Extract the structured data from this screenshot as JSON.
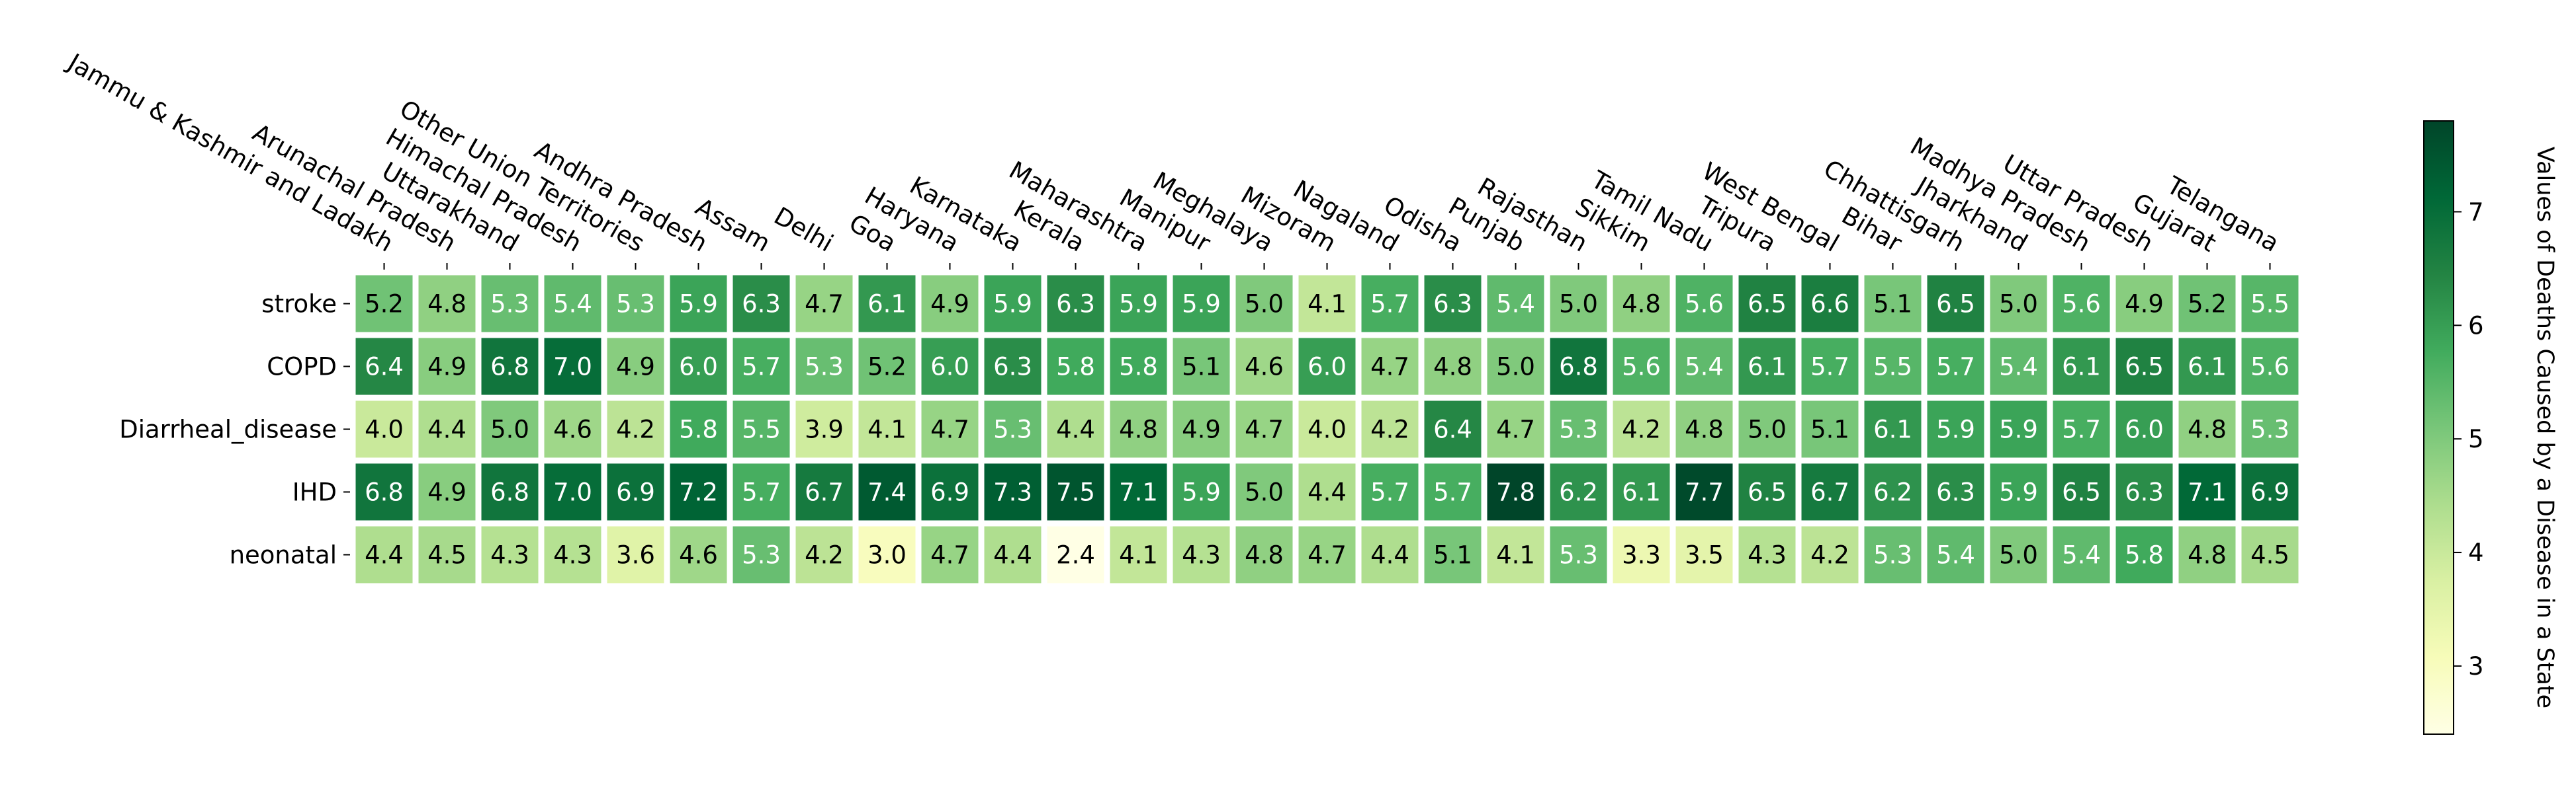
{
  "chart_data": {
    "type": "heatmap",
    "title": "",
    "xlabel": "",
    "ylabel": "",
    "x_tick_position": "top",
    "x_categories": [
      "Jammu & Kashmir and Ladakh",
      "Arunachal Pradesh",
      "Uttarakhand",
      "Himachal Pradesh",
      "Other Union Territories",
      "Andhra Pradesh",
      "Assam",
      "Delhi",
      "Goa",
      "Haryana",
      "Karnataka",
      "Kerala",
      "Maharashtra",
      "Manipur",
      "Meghalaya",
      "Mizoram",
      "Nagaland",
      "Odisha",
      "Punjab",
      "Rajasthan",
      "Sikkim",
      "Tamil Nadu",
      "Tripura",
      "West Bengal",
      "Bihar",
      "Chhattisgarh",
      "Jharkhand",
      "Madhya Pradesh",
      "Uttar Pradesh",
      "Gujarat",
      "Telangana"
    ],
    "y_categories": [
      "stroke",
      "COPD",
      "Diarrheal_disease",
      "IHD",
      "neonatal"
    ],
    "values": [
      [
        5.2,
        4.8,
        5.3,
        5.4,
        5.3,
        5.9,
        6.3,
        4.7,
        6.1,
        4.9,
        5.9,
        6.3,
        5.9,
        5.9,
        5.0,
        4.1,
        5.7,
        6.3,
        5.4,
        5.0,
        4.8,
        5.6,
        6.5,
        6.6,
        5.1,
        6.5,
        5.0,
        5.6,
        4.9,
        5.2,
        5.5
      ],
      [
        6.4,
        4.9,
        6.8,
        7.0,
        4.9,
        6.0,
        5.7,
        5.3,
        5.2,
        6.0,
        6.3,
        5.8,
        5.8,
        5.1,
        4.6,
        6.0,
        4.7,
        4.8,
        5.0,
        6.8,
        5.6,
        5.4,
        6.1,
        5.7,
        5.5,
        5.7,
        5.4,
        6.1,
        6.5,
        6.1,
        5.6
      ],
      [
        4.0,
        4.4,
        5.0,
        4.6,
        4.2,
        5.8,
        5.5,
        3.9,
        4.1,
        4.7,
        5.3,
        4.4,
        4.8,
        4.9,
        4.7,
        4.0,
        4.2,
        6.4,
        4.7,
        5.3,
        4.2,
        4.8,
        5.0,
        5.1,
        6.1,
        5.9,
        5.9,
        5.7,
        6.0,
        4.8,
        5.3
      ],
      [
        6.8,
        4.9,
        6.8,
        7.0,
        6.9,
        7.2,
        5.7,
        6.7,
        7.4,
        6.9,
        7.3,
        7.5,
        7.1,
        5.9,
        5.0,
        4.4,
        5.7,
        5.7,
        7.8,
        6.2,
        6.1,
        7.7,
        6.5,
        6.7,
        6.2,
        6.3,
        5.9,
        6.5,
        6.3,
        7.1,
        6.9
      ],
      [
        4.4,
        4.5,
        4.3,
        4.3,
        3.6,
        4.6,
        5.3,
        4.2,
        3.0,
        4.7,
        4.4,
        2.4,
        4.1,
        4.3,
        4.8,
        4.7,
        4.4,
        5.1,
        4.1,
        5.3,
        3.3,
        3.5,
        4.3,
        4.2,
        5.3,
        5.4,
        5.0,
        5.4,
        5.8,
        4.8,
        4.5
      ]
    ],
    "value_format": "one decimal",
    "colormap": "YlGn",
    "colormap_stops": [
      "#ffffe5",
      "#f7fcb9",
      "#d9f0a3",
      "#addd8e",
      "#78c679",
      "#41ab5d",
      "#238443",
      "#006837",
      "#004529"
    ],
    "vmin": 2.4,
    "vmax": 7.8,
    "cell_border_color": "#ffffff",
    "colorbar": {
      "label": "Values of Deaths Caused by a Disease in a State",
      "ticks": [
        3,
        4,
        5,
        6,
        7
      ],
      "tick_labels": [
        "3",
        "4",
        "5",
        "6",
        "7"
      ],
      "placement": "right"
    },
    "annotation_color_dark": "#000000",
    "annotation_color_light": "#ffffff",
    "grid": false,
    "legend": "colorbar"
  }
}
